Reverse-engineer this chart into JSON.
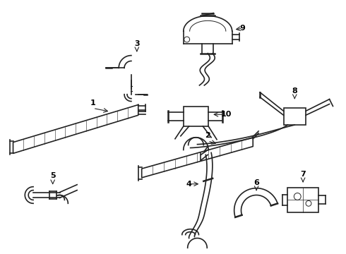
{
  "background_color": "#ffffff",
  "line_color": "#222222",
  "text_color": "#000000",
  "fig_width": 4.9,
  "fig_height": 3.6,
  "dpi": 100
}
